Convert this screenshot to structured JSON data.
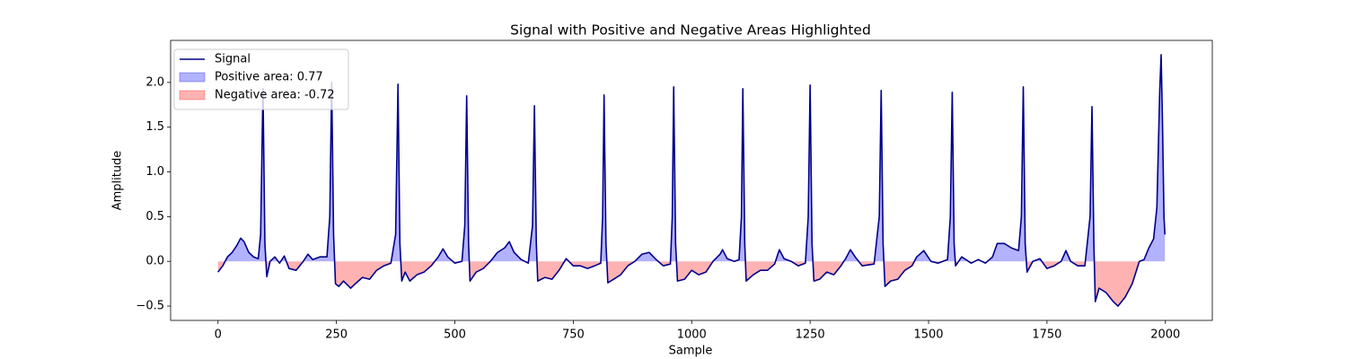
{
  "chart_data": {
    "type": "line",
    "title": "Signal with Positive and Negative Areas Highlighted",
    "x_label": "Sample",
    "y_label": "Amplitude",
    "x": [
      0,
      10,
      20,
      30,
      40,
      48,
      55,
      65,
      75,
      85,
      90,
      95,
      99,
      103,
      110,
      120,
      130,
      140,
      150,
      165,
      180,
      190,
      200,
      215,
      230,
      236,
      240,
      244,
      248,
      255,
      265,
      280,
      290,
      305,
      320,
      335,
      350,
      365,
      375,
      380,
      384,
      388,
      395,
      405,
      420,
      435,
      450,
      465,
      475,
      485,
      500,
      515,
      521,
      525,
      529,
      532,
      545,
      560,
      575,
      590,
      605,
      615,
      625,
      640,
      655,
      664,
      668,
      672,
      675,
      690,
      705,
      720,
      735,
      750,
      765,
      780,
      795,
      808,
      812,
      815,
      819,
      823,
      835,
      850,
      865,
      880,
      895,
      910,
      925,
      940,
      955,
      959,
      962,
      966,
      970,
      985,
      1000,
      1015,
      1030,
      1045,
      1060,
      1065,
      1075,
      1090,
      1100,
      1105,
      1108,
      1112,
      1115,
      1130,
      1145,
      1160,
      1175,
      1185,
      1195,
      1210,
      1225,
      1240,
      1246,
      1250,
      1254,
      1258,
      1270,
      1285,
      1300,
      1315,
      1325,
      1335,
      1345,
      1360,
      1385,
      1396,
      1400,
      1404,
      1408,
      1420,
      1435,
      1450,
      1465,
      1475,
      1490,
      1505,
      1520,
      1540,
      1546,
      1550,
      1554,
      1557,
      1570,
      1590,
      1605,
      1620,
      1635,
      1645,
      1660,
      1675,
      1690,
      1696,
      1700,
      1704,
      1708,
      1720,
      1735,
      1750,
      1765,
      1780,
      1790,
      1800,
      1815,
      1830,
      1841,
      1845,
      1849,
      1852,
      1860,
      1875,
      1890,
      1900,
      1915,
      1930,
      1945,
      1955,
      1965,
      1975,
      1982,
      1988,
      1991,
      1994,
      1997,
      1999
    ],
    "series": [
      {
        "name": "Signal",
        "color": "#00008b",
        "values": [
          -0.12,
          -0.05,
          0.05,
          0.1,
          0.18,
          0.26,
          0.22,
          0.1,
          0.05,
          0.03,
          0.3,
          1.93,
          0.2,
          -0.17,
          0.0,
          0.05,
          -0.02,
          0.06,
          -0.08,
          -0.1,
          0.0,
          0.08,
          0.02,
          0.05,
          0.05,
          0.5,
          2.0,
          0.3,
          -0.25,
          -0.28,
          -0.22,
          -0.3,
          -0.25,
          -0.18,
          -0.2,
          -0.1,
          -0.05,
          -0.02,
          0.3,
          1.98,
          0.2,
          -0.22,
          -0.12,
          -0.22,
          -0.15,
          -0.12,
          -0.05,
          0.05,
          0.14,
          0.05,
          -0.02,
          0.0,
          0.4,
          1.85,
          0.2,
          -0.22,
          -0.12,
          -0.08,
          0.0,
          0.1,
          0.15,
          0.22,
          0.1,
          0.02,
          -0.02,
          0.4,
          1.74,
          0.2,
          -0.22,
          -0.18,
          -0.2,
          -0.1,
          0.03,
          -0.05,
          -0.05,
          -0.08,
          -0.05,
          -0.02,
          0.5,
          1.86,
          0.2,
          -0.24,
          -0.2,
          -0.15,
          -0.05,
          0.0,
          0.08,
          0.1,
          0.02,
          -0.05,
          -0.03,
          0.5,
          1.95,
          0.2,
          -0.22,
          -0.2,
          -0.1,
          -0.15,
          -0.12,
          0.0,
          0.08,
          0.13,
          0.03,
          0.0,
          0.02,
          0.5,
          1.93,
          0.2,
          -0.22,
          -0.15,
          -0.1,
          -0.1,
          -0.03,
          0.13,
          0.03,
          0.0,
          -0.05,
          -0.02,
          0.5,
          1.97,
          0.2,
          -0.22,
          -0.2,
          -0.12,
          -0.15,
          -0.05,
          0.03,
          0.13,
          0.05,
          -0.05,
          -0.03,
          0.5,
          1.91,
          0.2,
          -0.28,
          -0.22,
          -0.2,
          -0.1,
          -0.05,
          0.05,
          0.12,
          0.0,
          -0.02,
          0.02,
          0.5,
          1.89,
          0.2,
          -0.05,
          0.05,
          -0.02,
          0.02,
          -0.02,
          0.05,
          0.2,
          0.2,
          0.15,
          0.12,
          0.5,
          1.95,
          0.2,
          -0.12,
          0.0,
          0.03,
          -0.08,
          -0.05,
          0.0,
          0.12,
          0.0,
          -0.05,
          -0.05,
          0.5,
          1.73,
          0.2,
          -0.45,
          -0.3,
          -0.35,
          -0.45,
          -0.5,
          -0.4,
          -0.25,
          0.0,
          0.02,
          0.15,
          0.25,
          0.6,
          1.9,
          2.31,
          1.5,
          0.5,
          0.3
        ]
      }
    ],
    "fills": [
      {
        "name": "Positive area: 0.77",
        "color": "#0000ff",
        "where": "positive"
      },
      {
        "name": "Negative area: -0.72",
        "color": "#ff0000",
        "where": "negative"
      }
    ],
    "xlim": [
      -100,
      2099
    ],
    "ylim": [
      -0.66,
      2.47
    ],
    "xticks": [
      0,
      250,
      500,
      750,
      1000,
      1250,
      1500,
      1750,
      2000
    ],
    "yticks": [
      {
        "value": -0.5,
        "label": "−0.5"
      },
      {
        "value": 0,
        "label": "0.0"
      },
      {
        "value": 0.5,
        "label": "0.5"
      },
      {
        "value": 1,
        "label": "1.0"
      },
      {
        "value": 1.5,
        "label": "1.5"
      },
      {
        "value": 2,
        "label": "2.0"
      }
    ],
    "legend": "upper left"
  }
}
